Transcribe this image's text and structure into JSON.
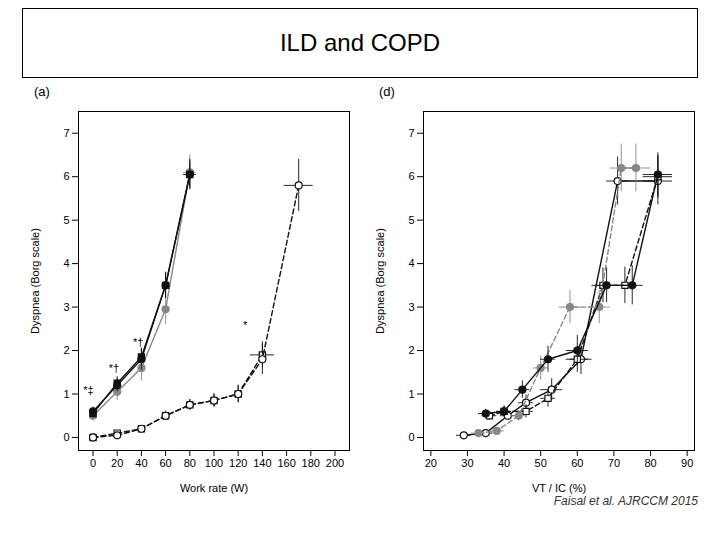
{
  "title": "ILD and COPD",
  "citation": "Faisal et al. AJRCCM 2015",
  "chart_data": [
    {
      "type": "line",
      "title": "(a)",
      "xlabel": "Work rate (W)",
      "ylabel": "Dyspnea (Borg scale)",
      "xlim": [
        -12,
        212
      ],
      "ylim": [
        -0.3,
        7.5
      ],
      "xticks": [
        0,
        20,
        40,
        60,
        80,
        100,
        120,
        140,
        160,
        180,
        200
      ],
      "yticks": [
        0,
        1,
        2,
        3,
        4,
        5,
        6,
        7
      ],
      "grid": false,
      "series": [
        {
          "color": "#111111",
          "marker": "open_square",
          "line_style": "dashed",
          "x": [
            0,
            20,
            40,
            60,
            80,
            100,
            120,
            140
          ],
          "values": [
            0.0,
            0.1,
            0.2,
            0.5,
            0.75,
            0.85,
            1.0,
            1.9
          ],
          "xerr": [
            0,
            0,
            0,
            0,
            0,
            0,
            0,
            10
          ],
          "yerr": [
            0.03,
            0.05,
            0.07,
            0.1,
            0.12,
            0.15,
            0.2,
            0.3
          ]
        },
        {
          "color": "#111111",
          "marker": "open_circle",
          "line_style": "dashed",
          "x": [
            0,
            20,
            40,
            60,
            80,
            100,
            120,
            140,
            170
          ],
          "values": [
            0.0,
            0.05,
            0.2,
            0.5,
            0.75,
            0.85,
            1.0,
            1.8,
            5.8
          ],
          "xerr": [
            0,
            0,
            0,
            0,
            0,
            0,
            0,
            0,
            12
          ],
          "yerr": [
            0.03,
            0.05,
            0.07,
            0.1,
            0.12,
            0.15,
            0.2,
            0.35,
            0.6
          ]
        },
        {
          "color": "#888888",
          "marker": "circle",
          "line_style": "solid",
          "x": [
            0,
            20,
            40,
            60,
            80
          ],
          "values": [
            0.5,
            1.05,
            1.6,
            2.95,
            6.1
          ],
          "xerr": [
            0,
            0,
            0,
            0,
            5
          ],
          "yerr": [
            0.12,
            0.2,
            0.3,
            0.35,
            0.4
          ]
        },
        {
          "color": "#111111",
          "marker": "square",
          "line_style": "solid",
          "x": [
            0,
            20,
            40,
            60,
            80
          ],
          "values": [
            0.55,
            1.25,
            1.85,
            3.5,
            6.05
          ],
          "xerr": [
            0,
            0,
            0,
            0,
            5
          ],
          "yerr": [
            0.1,
            0.15,
            0.2,
            0.3,
            0.3
          ]
        },
        {
          "color": "#111111",
          "marker": "circle",
          "line_style": "solid",
          "x": [
            0,
            20,
            40,
            60,
            80
          ],
          "values": [
            0.6,
            1.2,
            1.8,
            3.5,
            6.05
          ],
          "xerr": [
            0,
            0,
            0,
            0,
            5
          ],
          "yerr": [
            0.1,
            0.15,
            0.25,
            0.3,
            0.35
          ]
        }
      ],
      "annotations": [
        {
          "text": "*‡",
          "x": -8,
          "y": 1.0
        },
        {
          "text": "*†",
          "x": 13,
          "y": 1.5
        },
        {
          "text": "*†",
          "x": 33,
          "y": 2.1
        },
        {
          "text": "*",
          "x": 124,
          "y": 2.5
        }
      ]
    },
    {
      "type": "line",
      "title": "(d)",
      "xlabel": "VT / IC (%)",
      "ylabel": "Dyspnea (Borg scale)",
      "xlim": [
        18,
        92
      ],
      "ylim": [
        -0.3,
        7.5
      ],
      "xticks": [
        20,
        30,
        40,
        50,
        60,
        70,
        80,
        90
      ],
      "yticks": [
        0,
        1,
        2,
        3,
        4,
        5,
        6,
        7
      ],
      "grid": false,
      "series": [
        {
          "color": "#111111",
          "marker": "open_circle",
          "line_style": "solid",
          "x": [
            29,
            35,
            41,
            46,
            53,
            61,
            71,
            82
          ],
          "values": [
            0.05,
            0.1,
            0.5,
            0.8,
            1.1,
            1.8,
            5.9,
            5.9
          ],
          "xerr": [
            2,
            2,
            2,
            2,
            3,
            3,
            3,
            4
          ],
          "yerr": [
            0.04,
            0.06,
            0.1,
            0.18,
            0.25,
            0.35,
            0.55,
            0.55
          ]
        },
        {
          "color": "#111111",
          "marker": "open_square",
          "line_style": "dashed",
          "x": [
            36,
            40,
            46,
            52,
            60,
            67,
            73,
            82
          ],
          "values": [
            0.5,
            0.6,
            0.6,
            0.9,
            1.8,
            3.5,
            3.5,
            6.0
          ],
          "xerr": [
            2,
            2,
            2,
            2,
            3,
            3,
            3,
            4
          ],
          "yerr": [
            0.1,
            0.12,
            0.15,
            0.2,
            0.3,
            0.4,
            0.42,
            0.5
          ]
        },
        {
          "color": "#888888",
          "marker": "circle",
          "line_style": "dashed",
          "x": [
            33,
            38,
            44,
            50,
            58,
            66,
            72,
            76
          ],
          "values": [
            0.1,
            0.15,
            0.5,
            1.6,
            3.0,
            3.0,
            6.2,
            6.2
          ],
          "xerr": [
            2,
            2,
            2,
            2,
            3,
            3,
            3,
            4
          ],
          "yerr": [
            0.06,
            0.08,
            0.12,
            0.28,
            0.38,
            0.38,
            0.55,
            0.55
          ]
        },
        {
          "color": "#111111",
          "marker": "circle",
          "line_style": "solid",
          "x": [
            35,
            40,
            45,
            52,
            60,
            68,
            75,
            82
          ],
          "values": [
            0.55,
            0.6,
            1.1,
            1.8,
            2.0,
            3.5,
            3.5,
            6.05
          ],
          "xerr": [
            2,
            2,
            2,
            2,
            3,
            3,
            3,
            4
          ],
          "yerr": [
            0.1,
            0.12,
            0.2,
            0.3,
            0.35,
            0.4,
            0.45,
            0.5
          ]
        }
      ]
    }
  ]
}
